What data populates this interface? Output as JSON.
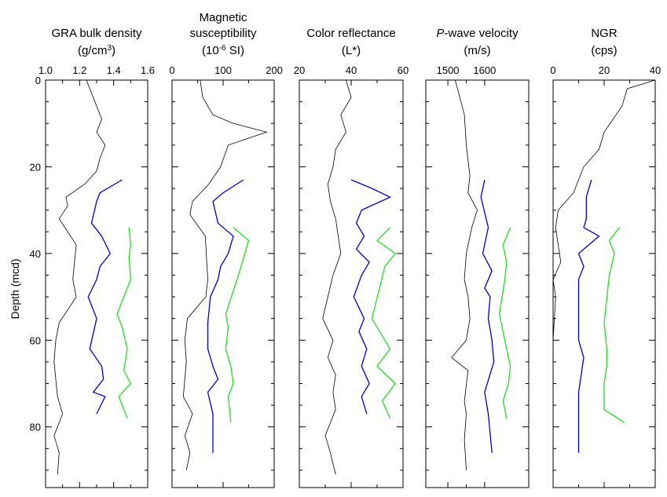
{
  "chart_data": [
    {
      "type": "line",
      "title_lines": [
        "GRA bulk density",
        "(g/cm",
        "3",
        ")"
      ],
      "xlim": [
        1.0,
        1.6
      ],
      "xticks": [
        "1.0",
        "1.2",
        "1.4",
        "1.6"
      ],
      "series": [
        {
          "color": "#000000",
          "values": [
            [
              1.24,
              0
            ],
            [
              1.27,
              3
            ],
            [
              1.3,
              6
            ],
            [
              1.33,
              9
            ],
            [
              1.3,
              12
            ],
            [
              1.35,
              15
            ],
            [
              1.32,
              18
            ],
            [
              1.3,
              21
            ],
            [
              1.23,
              24
            ],
            [
              1.12,
              27
            ],
            [
              1.13,
              29
            ],
            [
              1.08,
              32
            ],
            [
              1.18,
              38
            ],
            [
              1.16,
              46
            ],
            [
              1.18,
              50
            ],
            [
              1.08,
              56
            ],
            [
              1.06,
              60
            ],
            [
              1.05,
              65
            ],
            [
              1.07,
              73
            ],
            [
              1.1,
              77
            ],
            [
              1.05,
              82
            ],
            [
              1.08,
              86
            ],
            [
              1.07,
              91
            ]
          ]
        },
        {
          "color": "#0000cc",
          "values": [
            [
              1.45,
              23
            ],
            [
              1.32,
              26
            ],
            [
              1.3,
              28
            ],
            [
              1.27,
              33
            ],
            [
              1.33,
              36
            ],
            [
              1.38,
              40
            ],
            [
              1.32,
              43
            ],
            [
              1.3,
              46
            ],
            [
              1.25,
              50
            ],
            [
              1.3,
              55
            ],
            [
              1.26,
              62
            ],
            [
              1.33,
              66
            ],
            [
              1.34,
              69
            ],
            [
              1.28,
              72
            ],
            [
              1.35,
              73
            ],
            [
              1.3,
              77
            ]
          ]
        },
        {
          "color": "#22dd22",
          "values": [
            [
              1.49,
              34
            ],
            [
              1.5,
              38
            ],
            [
              1.49,
              41
            ],
            [
              1.5,
              46
            ],
            [
              1.42,
              54
            ],
            [
              1.45,
              57
            ],
            [
              1.48,
              62
            ],
            [
              1.46,
              67
            ],
            [
              1.5,
              70
            ],
            [
              1.43,
              73
            ],
            [
              1.48,
              78
            ]
          ]
        }
      ]
    },
    {
      "type": "line",
      "title_lines": [
        "Magnetic",
        "susceptibility",
        "(10",
        "-6",
        " SI)"
      ],
      "xlim": [
        0,
        200
      ],
      "xticks": [
        "0",
        "100",
        "200"
      ],
      "series": [
        {
          "color": "#000000",
          "values": [
            [
              55,
              0
            ],
            [
              60,
              4
            ],
            [
              80,
              8
            ],
            [
              120,
              10
            ],
            [
              185,
              12
            ],
            [
              110,
              15
            ],
            [
              95,
              20
            ],
            [
              72,
              24
            ],
            [
              40,
              28
            ],
            [
              35,
              31
            ],
            [
              65,
              36
            ],
            [
              68,
              42
            ],
            [
              70,
              46
            ],
            [
              66,
              50
            ],
            [
              30,
              55
            ],
            [
              25,
              60
            ],
            [
              28,
              65
            ],
            [
              22,
              73
            ],
            [
              40,
              77
            ],
            [
              25,
              82
            ],
            [
              35,
              86
            ],
            [
              28,
              90
            ]
          ]
        },
        {
          "color": "#0000cc",
          "values": [
            [
              140,
              23
            ],
            [
              100,
              26
            ],
            [
              80,
              28
            ],
            [
              90,
              33
            ],
            [
              120,
              36
            ],
            [
              110,
              40
            ],
            [
              95,
              43
            ],
            [
              90,
              46
            ],
            [
              75,
              50
            ],
            [
              70,
              56
            ],
            [
              70,
              62
            ],
            [
              80,
              66
            ],
            [
              90,
              69
            ],
            [
              70,
              72
            ],
            [
              80,
              77
            ],
            [
              80,
              86
            ]
          ]
        },
        {
          "color": "#22dd22",
          "values": [
            [
              120,
              34
            ],
            [
              150,
              37
            ],
            [
              140,
              41
            ],
            [
              130,
              45
            ],
            [
              105,
              54
            ],
            [
              110,
              57
            ],
            [
              105,
              62
            ],
            [
              115,
              66
            ],
            [
              120,
              70
            ],
            [
              110,
              73
            ],
            [
              115,
              79
            ]
          ]
        }
      ]
    },
    {
      "type": "line",
      "title_lines": [
        "Color reflectance",
        "(L*)"
      ],
      "xlim": [
        20,
        60
      ],
      "xticks": [
        "20",
        "40",
        "60"
      ],
      "series": [
        {
          "color": "#000000",
          "values": [
            [
              38,
              0
            ],
            [
              40,
              4
            ],
            [
              36,
              8
            ],
            [
              38,
              12
            ],
            [
              34,
              16
            ],
            [
              33,
              20
            ],
            [
              31,
              24
            ],
            [
              32,
              28
            ],
            [
              34,
              32
            ],
            [
              35,
              36
            ],
            [
              36,
              40
            ],
            [
              33,
              45
            ],
            [
              31,
              50
            ],
            [
              29,
              55
            ],
            [
              33,
              60
            ],
            [
              31,
              64
            ],
            [
              34,
              68
            ],
            [
              33,
              72
            ],
            [
              34,
              76
            ],
            [
              30,
              82
            ],
            [
              32,
              86
            ],
            [
              34,
              91
            ]
          ]
        },
        {
          "color": "#0000cc",
          "values": [
            [
              40,
              23
            ],
            [
              48,
              25
            ],
            [
              55,
              27
            ],
            [
              44,
              30
            ],
            [
              42,
              33
            ],
            [
              45,
              36
            ],
            [
              42,
              39
            ],
            [
              47,
              42
            ],
            [
              44,
              45
            ],
            [
              41,
              50
            ],
            [
              45,
              55
            ],
            [
              43,
              58
            ],
            [
              46,
              62
            ],
            [
              44,
              66
            ],
            [
              47,
              70
            ],
            [
              44,
              73
            ],
            [
              46,
              77
            ]
          ]
        },
        {
          "color": "#22dd22",
          "values": [
            [
              55,
              34
            ],
            [
              50,
              37
            ],
            [
              57,
              40
            ],
            [
              53,
              43
            ],
            [
              48,
              55
            ],
            [
              55,
              62
            ],
            [
              50,
              66
            ],
            [
              57,
              70
            ],
            [
              52,
              74
            ],
            [
              55,
              78
            ]
          ]
        }
      ]
    },
    {
      "type": "line",
      "title_lines": [
        "P",
        "-wave velocity",
        "(m/s)"
      ],
      "xlim": [
        1440,
        1720
      ],
      "xticks": [
        "1500",
        "1600"
      ],
      "series": [
        {
          "color": "#000000",
          "values": [
            [
              1520,
              0
            ],
            [
              1545,
              8
            ],
            [
              1550,
              15
            ],
            [
              1560,
              22
            ],
            [
              1555,
              26
            ],
            [
              1580,
              30
            ],
            [
              1565,
              34
            ],
            [
              1550,
              40
            ],
            [
              1545,
              46
            ],
            [
              1555,
              50
            ],
            [
              1560,
              55
            ],
            [
              1550,
              60
            ],
            [
              1510,
              64
            ],
            [
              1555,
              67
            ],
            [
              1545,
              74
            ],
            [
              1550,
              77
            ],
            [
              1545,
              83
            ],
            [
              1550,
              90
            ]
          ]
        },
        {
          "color": "#0000cc",
          "values": [
            [
              1600,
              23
            ],
            [
              1590,
              27
            ],
            [
              1610,
              34
            ],
            [
              1595,
              40
            ],
            [
              1620,
              44
            ],
            [
              1600,
              48
            ],
            [
              1615,
              50
            ],
            [
              1610,
              55
            ],
            [
              1620,
              60
            ],
            [
              1625,
              65
            ],
            [
              1600,
              72
            ],
            [
              1610,
              77
            ],
            [
              1620,
              86
            ]
          ]
        },
        {
          "color": "#22dd22",
          "values": [
            [
              1670,
              34
            ],
            [
              1650,
              38
            ],
            [
              1660,
              42
            ],
            [
              1655,
              46
            ],
            [
              1640,
              54
            ],
            [
              1650,
              58
            ],
            [
              1660,
              62
            ],
            [
              1670,
              66
            ],
            [
              1665,
              70
            ],
            [
              1650,
              74
            ],
            [
              1660,
              78
            ]
          ]
        }
      ]
    },
    {
      "type": "line",
      "title_lines": [
        "NGR",
        "(cps)"
      ],
      "xlim": [
        0,
        40
      ],
      "xticks": [
        "0",
        "20",
        "40"
      ],
      "series": [
        {
          "color": "#000000",
          "values": [
            [
              40,
              0
            ],
            [
              29,
              2
            ],
            [
              27,
              6
            ],
            [
              20,
              12
            ],
            [
              18,
              16
            ],
            [
              12,
              20
            ],
            [
              8,
              26
            ],
            [
              2,
              30
            ],
            [
              1,
              34
            ],
            [
              2,
              38
            ],
            [
              3,
              42
            ],
            [
              0,
              46
            ],
            [
              1,
              50
            ],
            [
              0,
              60
            ],
            [
              0,
              68
            ],
            [
              0,
              80
            ],
            [
              0,
              90
            ]
          ]
        },
        {
          "color": "#0000cc",
          "values": [
            [
              15,
              23
            ],
            [
              13,
              27
            ],
            [
              13,
              32
            ],
            [
              12,
              34
            ],
            [
              18,
              36
            ],
            [
              10,
              40
            ],
            [
              12,
              43
            ],
            [
              10,
              46
            ],
            [
              10,
              50
            ],
            [
              10,
              60
            ],
            [
              12,
              64
            ],
            [
              10,
              72
            ],
            [
              10,
              77
            ],
            [
              10,
              86
            ]
          ]
        },
        {
          "color": "#22dd22",
          "values": [
            [
              26,
              34
            ],
            [
              22,
              37
            ],
            [
              24,
              40
            ],
            [
              22,
              45
            ],
            [
              20,
              56
            ],
            [
              21,
              62
            ],
            [
              21,
              66
            ],
            [
              20,
              70
            ],
            [
              20,
              76
            ],
            [
              28,
              79
            ]
          ]
        }
      ]
    }
  ],
  "y_axis": {
    "label": "Depth (mcd)",
    "ylim": [
      0,
      94
    ],
    "ticks": [
      "0",
      "20",
      "40",
      "60",
      "80"
    ]
  }
}
